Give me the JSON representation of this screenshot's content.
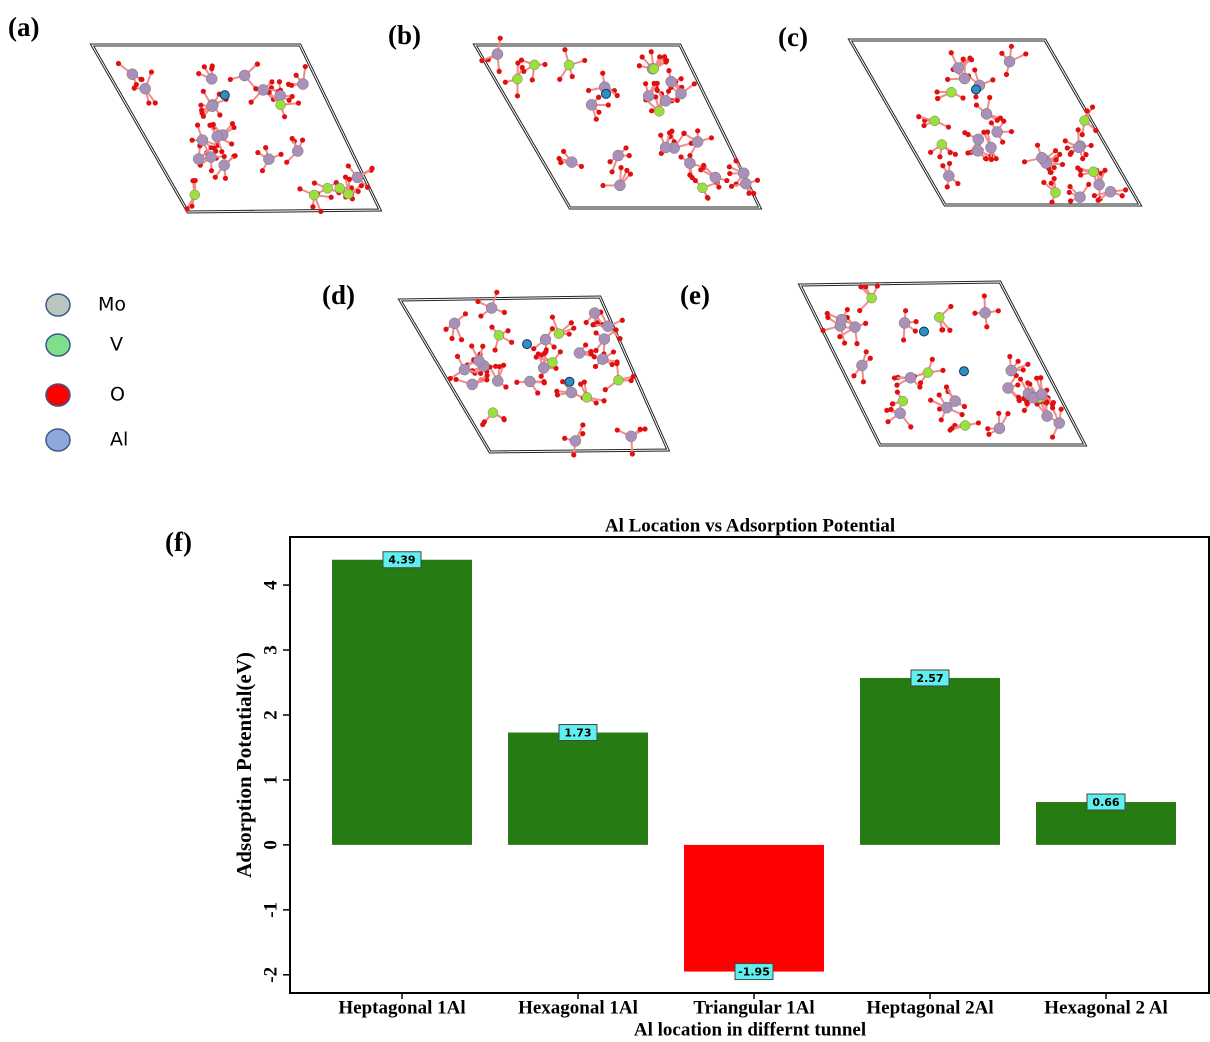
{
  "panel_labels": [
    "(a)",
    "(b)",
    "(c)",
    "(d)",
    "(e)",
    "(f)"
  ],
  "legend": [
    {
      "label": "Mo",
      "color": "#b9c7bf"
    },
    {
      "label": "V",
      "color": "#7fe08c"
    },
    {
      "label": "O",
      "color": "#ff0000"
    },
    {
      "label": "Al",
      "color": "#8ea8db"
    }
  ],
  "chart_data": {
    "type": "bar",
    "title": "Al Location vs Adsorption Potential",
    "x_label": "Al location in differnt tunnel",
    "y_label": "Adsorption Potential(eV)",
    "categories": [
      "Heptagonal 1Al",
      "Hexagonal 1Al",
      "Triangular 1Al",
      "Heptagonal 2Al",
      "Hexagonal 2 Al"
    ],
    "values": [
      4.39,
      1.73,
      -1.95,
      2.57,
      0.66
    ],
    "colors": [
      "#267b12",
      "#267b12",
      "#ff0000",
      "#267b12",
      "#267b12"
    ],
    "ylim": [
      -2.28,
      4.74
    ],
    "yticks": [
      -2,
      -1,
      0,
      1,
      2,
      3,
      4
    ]
  }
}
